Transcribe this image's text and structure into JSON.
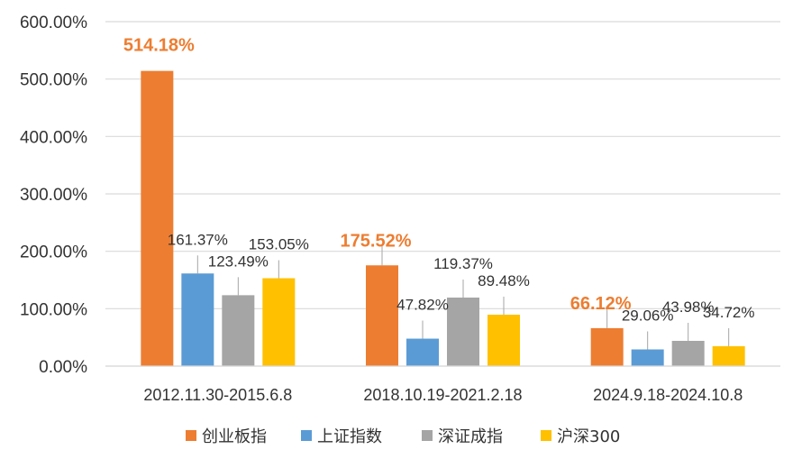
{
  "chart_data": {
    "type": "bar",
    "categories": [
      "2012.11.30-2015.6.8",
      "2018.10.19-2021.2.18",
      "2024.9.18-2024.10.8"
    ],
    "series": [
      {
        "name": "创业板指",
        "color": "#ED7D31",
        "values": [
          514.18,
          175.52,
          66.12
        ],
        "labels": [
          "514.18%",
          "175.52%",
          "66.12%"
        ],
        "highlight": true
      },
      {
        "name": "上证指数",
        "color": "#5B9BD5",
        "values": [
          161.37,
          47.82,
          29.06
        ],
        "labels": [
          "161.37%",
          "47.82%",
          "29.06%"
        ]
      },
      {
        "name": "深证成指",
        "color": "#A5A5A5",
        "values": [
          123.49,
          119.37,
          43.98
        ],
        "labels": [
          "123.49%",
          "119.37%",
          "43.98%"
        ]
      },
      {
        "name": "沪深300",
        "color": "#FFC000",
        "values": [
          153.05,
          89.48,
          34.72
        ],
        "labels": [
          "153.05%",
          "89.48%",
          "34.72%"
        ]
      }
    ],
    "ylim": [
      0,
      600
    ],
    "yticks": [
      0,
      100,
      200,
      300,
      400,
      500,
      600
    ],
    "ytick_labels": [
      "0.00%",
      "100.00%",
      "200.00%",
      "300.00%",
      "400.00%",
      "500.00%",
      "600.00%"
    ],
    "grid": true,
    "legend_position": "bottom"
  }
}
